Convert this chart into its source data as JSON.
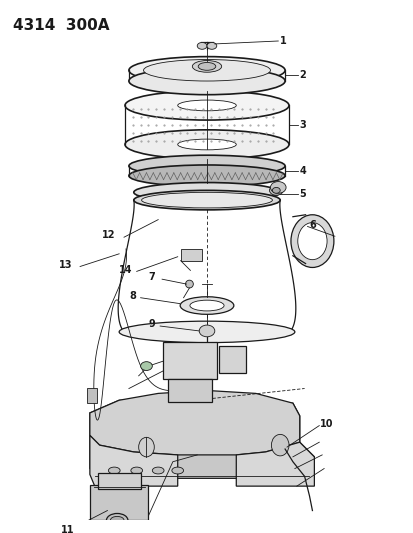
{
  "title": "4314  300A",
  "background_color": "#ffffff",
  "line_color": "#1a1a1a",
  "fig_width": 4.14,
  "fig_height": 5.33,
  "dpi": 100,
  "title_fontsize": 11,
  "label_fontsize": 7,
  "label_fontweight": "bold"
}
